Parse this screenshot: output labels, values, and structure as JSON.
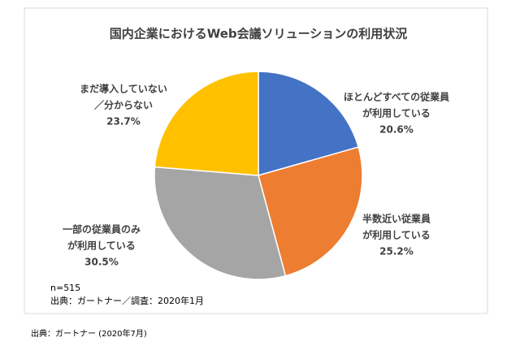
{
  "chart_data": {
    "type": "pie",
    "title": "国内企業におけるWeb会議ソリューションの利用状況",
    "categories": [
      [
        "ほとんどすべての従業員",
        "が利用している"
      ],
      [
        "半数近い従業員",
        "が利用している"
      ],
      [
        "一部の従業員のみ",
        "が利用している"
      ],
      [
        "まだ導入していない",
        "／分からない"
      ]
    ],
    "values": [
      20.6,
      25.2,
      30.5,
      23.7
    ],
    "value_labels": [
      "20.6%",
      "25.2%",
      "30.5%",
      "23.7%"
    ],
    "colors": [
      "#4472c4",
      "#ed7d31",
      "#a5a5a5",
      "#ffc000"
    ],
    "notes": [
      "n=515",
      "出典：ガートナー／調査：2020年1月"
    ]
  },
  "footer": "出典：ガートナー (2020年7月)"
}
